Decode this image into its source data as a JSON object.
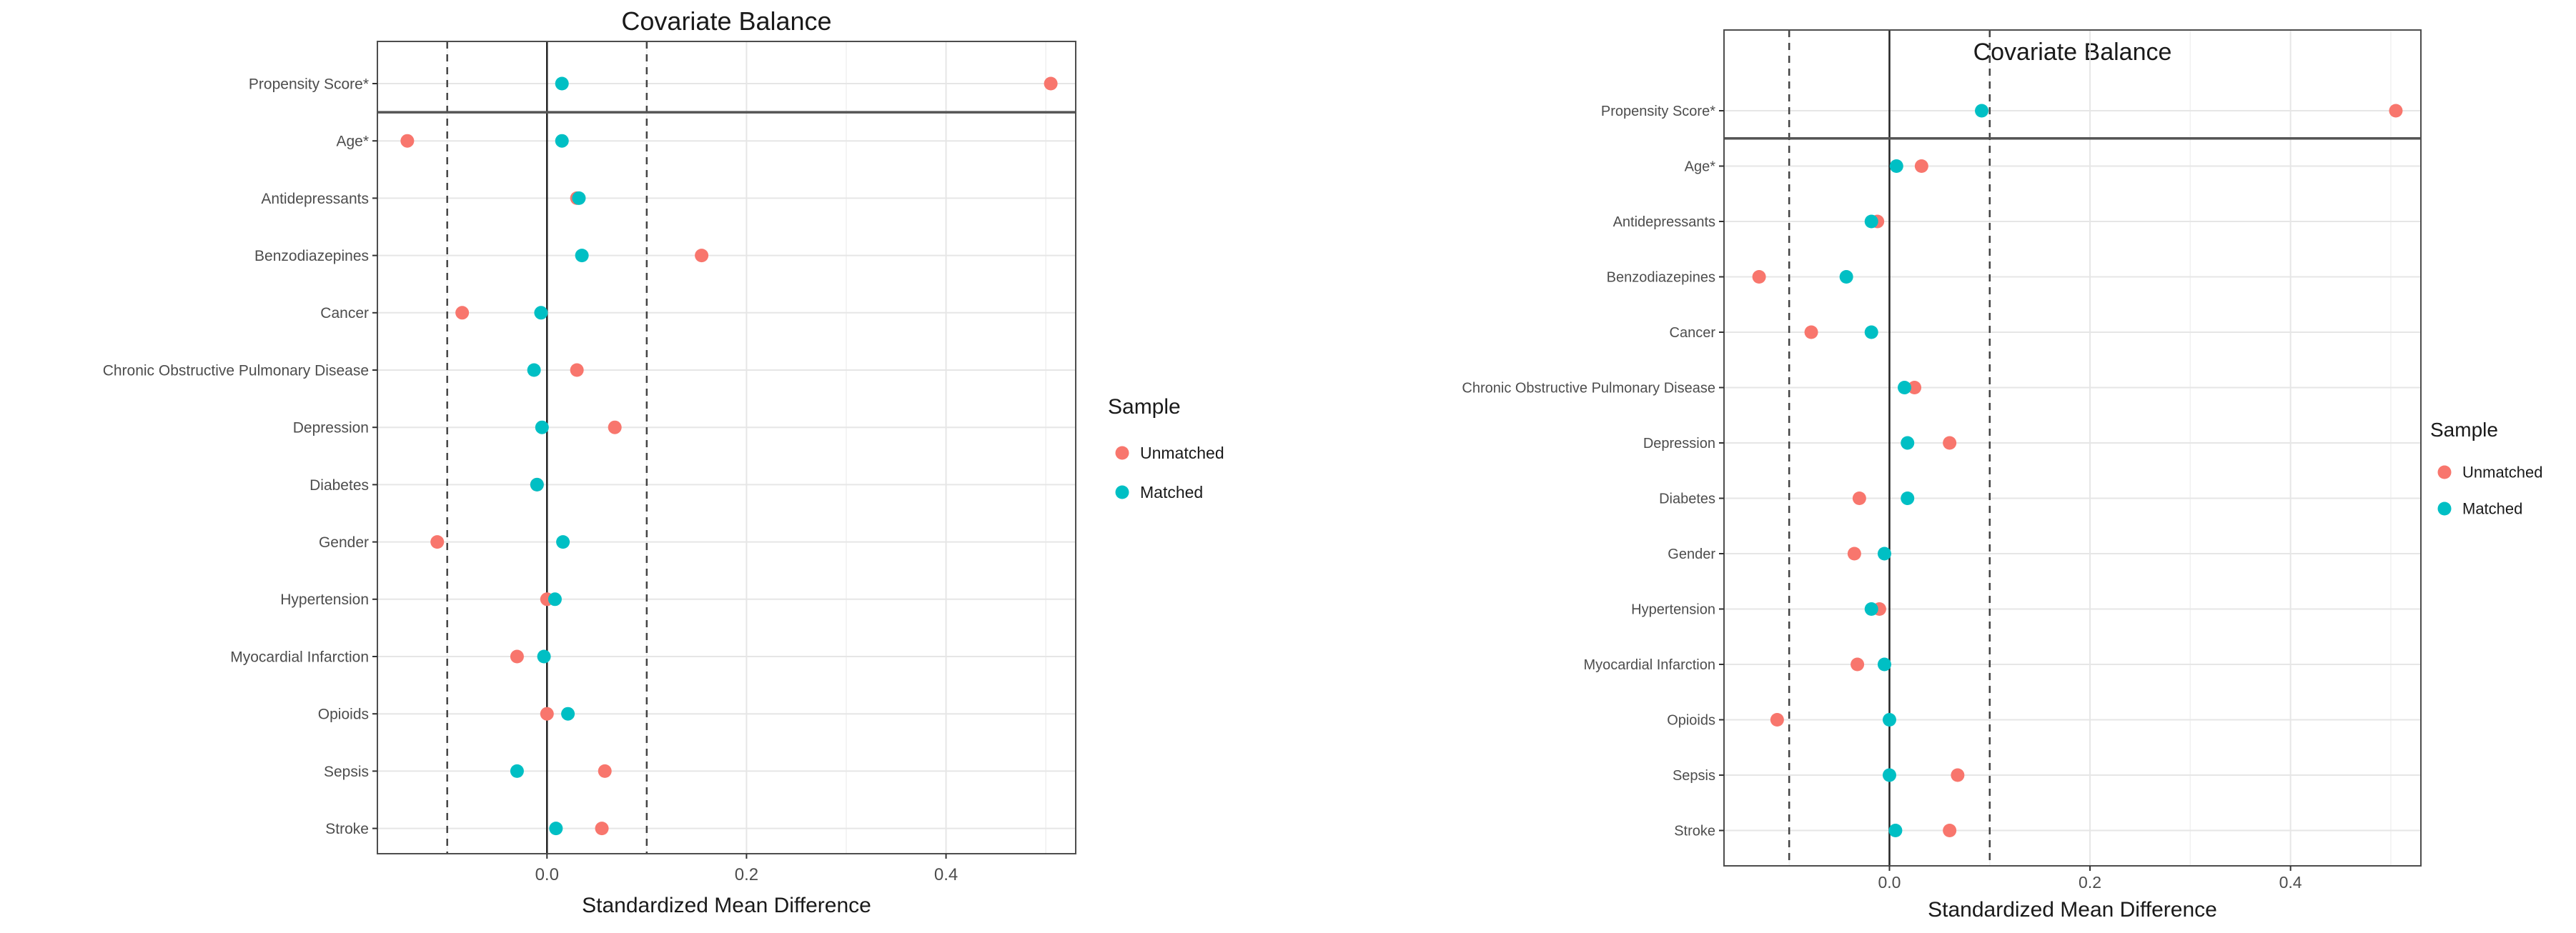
{
  "chart_data": [
    {
      "type": "scatter",
      "title": "Covariate Balance",
      "xlabel": "Standardized Mean Difference",
      "ylabel": "",
      "xlim": [
        -0.17,
        0.53
      ],
      "xticks": [
        0.0,
        0.2,
        0.4
      ],
      "xtick_labels": [
        "0.0",
        "0.2",
        "0.4"
      ],
      "thresholds": [
        -0.1,
        0.1
      ],
      "zero_line": 0.0,
      "grid": true,
      "legend_position": "right",
      "legend_title": "Sample",
      "colors": {
        "Unmatched": "#F8766D",
        "Matched": "#00BFC4"
      },
      "categories": [
        "Propensity Score*",
        "Age*",
        "Antidepressants",
        "Benzodiazepines",
        "Cancer",
        "Chronic Obstructive Pulmonary Disease",
        "Depression",
        "Diabetes",
        "Gender",
        "Hypertension",
        "Myocardial Infarction",
        "Opioids",
        "Sepsis",
        "Stroke"
      ],
      "separator_after_index": 0,
      "series": [
        {
          "name": "Unmatched",
          "values": [
            0.505,
            -0.14,
            0.03,
            0.155,
            -0.085,
            0.03,
            0.068,
            -0.01,
            -0.11,
            0.0,
            -0.03,
            0.0,
            0.058,
            0.055
          ]
        },
        {
          "name": "Matched",
          "values": [
            0.015,
            0.015,
            0.032,
            0.035,
            -0.006,
            -0.013,
            -0.005,
            -0.01,
            0.016,
            0.008,
            -0.003,
            0.021,
            -0.03,
            0.009
          ]
        }
      ]
    },
    {
      "type": "scatter",
      "title": "Covariate Balance",
      "xlabel": "Standardized Mean Difference",
      "ylabel": "",
      "xlim": [
        -0.165,
        0.53
      ],
      "xticks": [
        0.0,
        0.2,
        0.4
      ],
      "xtick_labels": [
        "0.0",
        "0.2",
        "0.4"
      ],
      "thresholds": [
        -0.1,
        0.1
      ],
      "zero_line": 0.0,
      "grid": true,
      "legend_position": "right",
      "legend_title": "Sample",
      "colors": {
        "Unmatched": "#F8766D",
        "Matched": "#00BFC4"
      },
      "categories": [
        "Propensity Score*",
        "Age*",
        "Antidepressants",
        "Benzodiazepines",
        "Cancer",
        "Chronic Obstructive Pulmonary Disease",
        "Depression",
        "Diabetes",
        "Gender",
        "Hypertension",
        "Myocardial Infarction",
        "Opioids",
        "Sepsis",
        "Stroke"
      ],
      "separator_after_index": 0,
      "series": [
        {
          "name": "Unmatched",
          "values": [
            0.505,
            0.032,
            -0.012,
            -0.13,
            -0.078,
            0.025,
            0.06,
            -0.03,
            -0.035,
            -0.01,
            -0.032,
            -0.112,
            0.068,
            0.06
          ]
        },
        {
          "name": "Matched",
          "values": [
            0.092,
            0.007,
            -0.018,
            -0.043,
            -0.018,
            0.015,
            0.018,
            0.018,
            -0.005,
            -0.018,
            -0.005,
            0.0,
            0.0,
            0.006
          ]
        }
      ]
    }
  ]
}
